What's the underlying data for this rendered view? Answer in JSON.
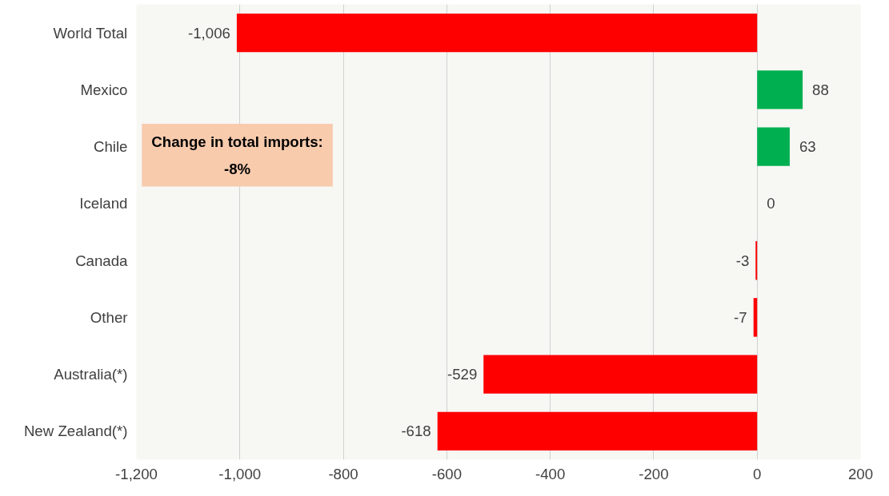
{
  "chart_data": {
    "type": "bar",
    "orientation": "horizontal",
    "categories": [
      "World Total",
      "Mexico",
      "Chile",
      "Iceland",
      "Canada",
      "Other",
      "Australia(*)",
      "New Zealand(*)"
    ],
    "values": [
      -1006,
      88,
      63,
      0,
      -3,
      -7,
      -529,
      -618
    ],
    "colors": [
      "#ff0000",
      "#00b050",
      "#00b050",
      "#ff0000",
      "#ff0000",
      "#ff0000",
      "#ff0000",
      "#ff0000"
    ],
    "value_labels": [
      "-1,006",
      "88",
      "63",
      "0",
      "-3",
      "-7",
      "-529",
      "-618"
    ],
    "xlim": [
      -1200,
      200
    ],
    "xticks": [
      {
        "value": -1200,
        "label": "-1,200"
      },
      {
        "value": -1000,
        "label": "-1,000"
      },
      -800,
      -600,
      -400,
      -200,
      0,
      200
    ],
    "grid": "x",
    "annotations": [
      "Change in total imports:\n-8%"
    ]
  }
}
